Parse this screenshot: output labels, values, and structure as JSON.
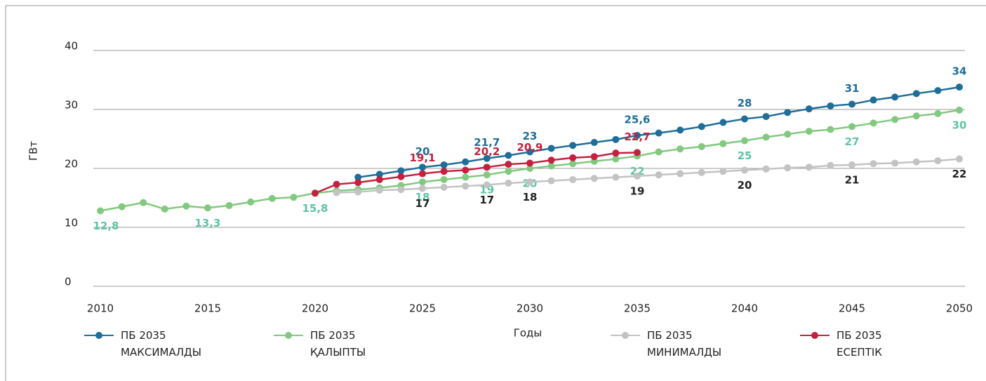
{
  "chart_data": {
    "type": "line",
    "y_label": "ГВт",
    "x_label": "Годы",
    "x": [
      2010,
      2011,
      2012,
      2013,
      2014,
      2015,
      2016,
      2017,
      2018,
      2019,
      2020,
      2021,
      2022,
      2023,
      2024,
      2025,
      2026,
      2027,
      2028,
      2029,
      2030,
      2031,
      2032,
      2033,
      2034,
      2035,
      2036,
      2037,
      2038,
      2039,
      2040,
      2041,
      2042,
      2043,
      2044,
      2045,
      2046,
      2047,
      2048,
      2049,
      2050
    ],
    "xlim": [
      2010,
      2050
    ],
    "xticks": [
      2010,
      2015,
      2020,
      2025,
      2030,
      2035,
      2040,
      2045,
      2050
    ],
    "ylim": [
      0,
      40
    ],
    "yticks": [
      0,
      10,
      20,
      30,
      40
    ],
    "grid": true,
    "series": [
      {
        "name": "ПБ 2035 МАКСИМАЛДЫ",
        "color": "#1f6e99",
        "label_color": "#1f6e99",
        "values": [
          null,
          null,
          null,
          null,
          null,
          null,
          null,
          null,
          null,
          null,
          null,
          null,
          18.5,
          19.0,
          19.6,
          20.2,
          20.6,
          21.1,
          21.7,
          22.2,
          22.8,
          23.4,
          23.9,
          24.4,
          24.9,
          25.6,
          26.0,
          26.5,
          27.1,
          27.8,
          28.4,
          28.8,
          29.5,
          30.1,
          30.6,
          30.9,
          31.6,
          32.1,
          32.7,
          33.2,
          33.8
        ],
        "value_labels": [
          null,
          null,
          null,
          null,
          null,
          null,
          null,
          null,
          null,
          null,
          null,
          null,
          null,
          null,
          null,
          "20",
          null,
          null,
          "21,7",
          null,
          "23",
          null,
          null,
          null,
          null,
          "25,6",
          null,
          null,
          null,
          null,
          "28",
          null,
          null,
          null,
          null,
          "31",
          null,
          null,
          null,
          null,
          "34"
        ]
      },
      {
        "name": "ПБ 2035 ҚАЛЫПТЫ",
        "color": "#82c97f",
        "label_color": "#5ec4a0",
        "values": [
          12.8,
          13.5,
          14.2,
          13.1,
          13.6,
          13.3,
          13.7,
          14.3,
          14.9,
          15.1,
          15.8,
          16.2,
          16.4,
          16.7,
          17.1,
          17.7,
          18.1,
          18.5,
          18.9,
          19.5,
          20.0,
          20.4,
          20.8,
          21.2,
          21.6,
          22.1,
          22.8,
          23.3,
          23.7,
          24.2,
          24.7,
          25.3,
          25.8,
          26.3,
          26.6,
          27.1,
          27.7,
          28.3,
          28.9,
          29.3,
          29.9
        ],
        "value_labels": [
          "12,8",
          null,
          null,
          null,
          null,
          "13,3",
          null,
          null,
          null,
          null,
          "15,8",
          null,
          null,
          null,
          null,
          "18",
          null,
          null,
          "19",
          null,
          "20",
          null,
          null,
          null,
          null,
          "22",
          null,
          null,
          null,
          null,
          "25",
          null,
          null,
          null,
          null,
          "27",
          null,
          null,
          null,
          null,
          "30"
        ]
      },
      {
        "name": "ПБ 2035 МИНИМАЛДЫ",
        "color": "#c3c3c3",
        "label_color": "#222222",
        "values": [
          null,
          null,
          null,
          null,
          null,
          null,
          null,
          null,
          null,
          null,
          null,
          15.9,
          16.0,
          16.3,
          16.4,
          16.6,
          16.8,
          17.0,
          17.2,
          17.5,
          17.7,
          17.9,
          18.1,
          18.3,
          18.5,
          18.7,
          18.9,
          19.1,
          19.3,
          19.5,
          19.7,
          19.9,
          20.1,
          20.2,
          20.5,
          20.6,
          20.8,
          20.9,
          21.1,
          21.3,
          21.6
        ],
        "value_labels": [
          null,
          null,
          null,
          null,
          null,
          null,
          null,
          null,
          null,
          null,
          null,
          null,
          null,
          null,
          null,
          "17",
          null,
          null,
          "17",
          null,
          "18",
          null,
          null,
          null,
          null,
          "19",
          null,
          null,
          null,
          null,
          "20",
          null,
          null,
          null,
          null,
          "21",
          null,
          null,
          null,
          null,
          "22"
        ]
      },
      {
        "name": "ПБ 2035 ЕСЕПТІК",
        "color": "#c4203f",
        "label_color": "#c4203f",
        "values": [
          null,
          null,
          null,
          null,
          null,
          null,
          null,
          null,
          null,
          null,
          15.8,
          17.3,
          17.6,
          18.1,
          18.6,
          19.1,
          19.5,
          19.7,
          20.2,
          20.7,
          20.9,
          21.4,
          21.8,
          22.0,
          22.6,
          22.7,
          null,
          null,
          null,
          null,
          null,
          null,
          null,
          null,
          null,
          null,
          null,
          null,
          null,
          null,
          null
        ],
        "value_labels": [
          null,
          null,
          null,
          null,
          null,
          null,
          null,
          null,
          null,
          null,
          null,
          null,
          null,
          null,
          null,
          "19,1",
          null,
          null,
          "20,2",
          null,
          "20,9",
          null,
          null,
          null,
          null,
          "22,7",
          null,
          null,
          null,
          null,
          null,
          null,
          null,
          null,
          null,
          null,
          null,
          null,
          null,
          null,
          null
        ]
      }
    ]
  }
}
